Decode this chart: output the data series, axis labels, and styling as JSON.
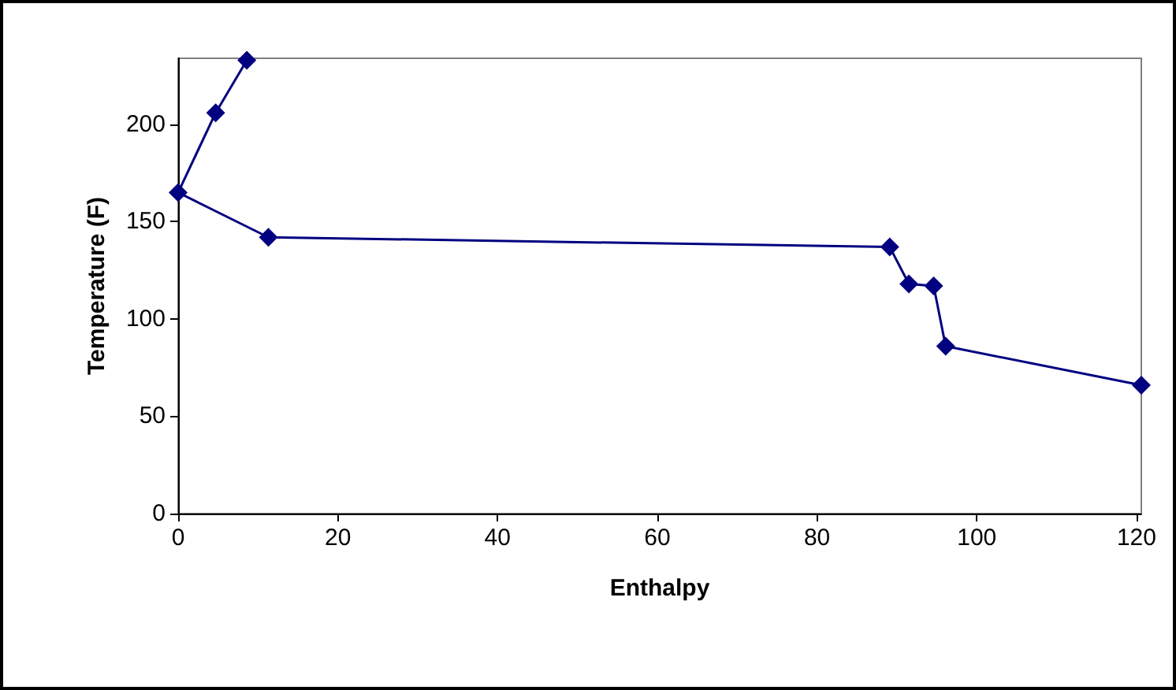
{
  "chart_data": {
    "type": "line",
    "xlabel": "Enthalpy",
    "ylabel": "Temperature (F)",
    "x": [
      8.6,
      4.7,
      0,
      11.3,
      89.1,
      91.5,
      94.6,
      96.1,
      120.6
    ],
    "series": [
      {
        "color": "#000080",
        "values": [
          233,
          206,
          165,
          142,
          137,
          118,
          117,
          86,
          66
        ]
      }
    ],
    "xlim": [
      0,
      120.6
    ],
    "xticks": [
      0,
      20,
      40,
      60,
      80,
      100,
      120
    ],
    "ylim": [
      0,
      234
    ],
    "yticks": [
      0,
      50,
      100,
      150,
      200
    ],
    "grid": false,
    "marker": "diamond",
    "line_style": "solid"
  }
}
